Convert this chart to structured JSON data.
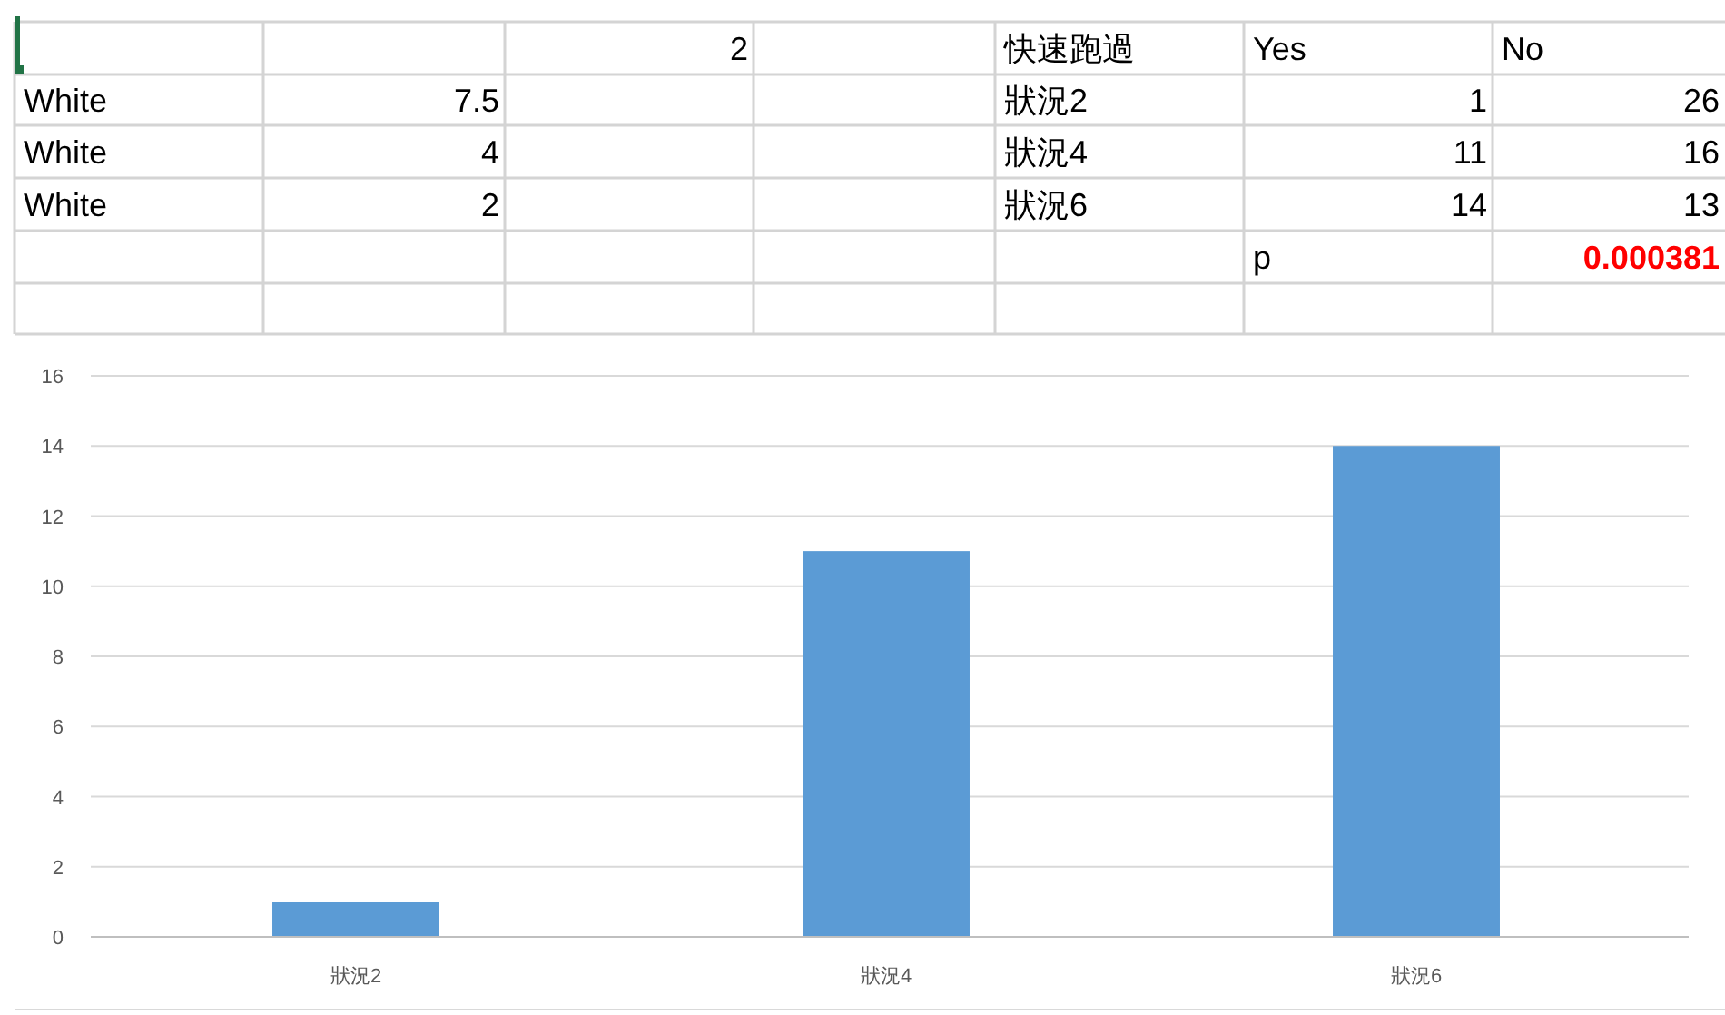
{
  "chart_data": [
    {
      "type": "other",
      "annotations": [
        "2",
        "快速跑過",
        "Yes",
        "No",
        "White",
        "7.5",
        "狀況2",
        "1",
        "26",
        "White",
        "4",
        "狀況4",
        "11",
        "16",
        "White",
        "2",
        "狀況6",
        "14",
        "13",
        "p",
        "0.000381"
      ]
    },
    {
      "type": "bar",
      "categories": [
        "狀況2",
        "狀況4",
        "狀況6"
      ],
      "values": [
        1,
        11,
        14
      ],
      "color": "#5b9bd5",
      "ylim": [
        0,
        16
      ],
      "yticks": [
        0,
        2,
        4,
        6,
        8,
        10,
        12,
        14,
        16
      ],
      "grid": "y"
    }
  ]
}
